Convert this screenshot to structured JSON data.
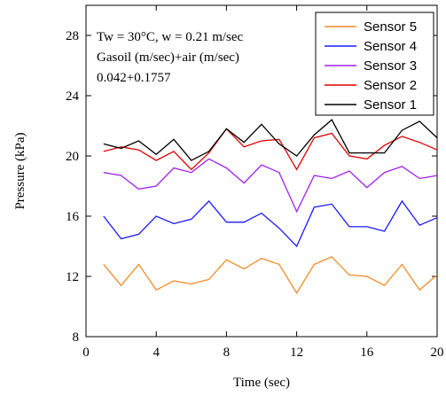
{
  "chart_data": {
    "type": "line",
    "xlabel": "Time (sec)",
    "ylabel": "Pressure (kPa)",
    "xlim": [
      0,
      20
    ],
    "ylim": [
      8,
      30
    ],
    "xticks": [
      0,
      4,
      8,
      12,
      16,
      20
    ],
    "yticks": [
      8,
      12,
      16,
      20,
      24,
      28
    ],
    "grid": false,
    "legend_position": "top-right",
    "annotations": [
      "Tw = 30°C, w = 0.21 m/sec",
      "Gasoil (m/sec)+air (m/sec)",
      "0.042+0.1757"
    ],
    "x": [
      1,
      2,
      3,
      4,
      5,
      6,
      7,
      8,
      9,
      10,
      11,
      12,
      13,
      14,
      15,
      16,
      17,
      18,
      19,
      20
    ],
    "series": [
      {
        "name": "Sensor 5",
        "color": "#f28c28",
        "values": [
          12.8,
          11.4,
          12.8,
          11.1,
          11.7,
          11.5,
          11.8,
          13.1,
          12.5,
          13.2,
          12.8,
          10.9,
          12.8,
          13.3,
          12.1,
          12.0,
          11.4,
          12.8,
          11.1,
          12.1
        ]
      },
      {
        "name": "Sensor 4",
        "color": "#1a1aff",
        "values": [
          16.0,
          14.5,
          14.8,
          16.0,
          15.5,
          15.8,
          17.0,
          15.6,
          15.6,
          16.2,
          15.2,
          14.0,
          16.6,
          16.8,
          15.3,
          15.3,
          15.0,
          17.0,
          15.4,
          15.9
        ]
      },
      {
        "name": "Sensor 3",
        "color": "#a020f0",
        "values": [
          18.9,
          18.7,
          17.8,
          18.0,
          19.2,
          18.9,
          19.8,
          19.2,
          18.2,
          19.4,
          18.9,
          16.3,
          18.7,
          18.5,
          19.0,
          17.9,
          18.9,
          19.3,
          18.5,
          18.7
        ]
      },
      {
        "name": "Sensor 2",
        "color": "#e00000",
        "values": [
          20.3,
          20.6,
          20.4,
          19.7,
          20.3,
          19.1,
          20.2,
          21.8,
          20.6,
          21.0,
          21.1,
          19.1,
          21.2,
          21.5,
          20.0,
          19.8,
          20.7,
          21.3,
          20.9,
          20.4
        ]
      },
      {
        "name": "Sensor 1",
        "color": "#000000",
        "values": [
          20.8,
          20.5,
          21.0,
          20.1,
          21.1,
          19.7,
          20.3,
          21.8,
          20.9,
          22.1,
          20.8,
          20.0,
          21.4,
          22.4,
          20.2,
          20.2,
          20.2,
          21.7,
          22.3,
          21.2
        ]
      }
    ]
  }
}
